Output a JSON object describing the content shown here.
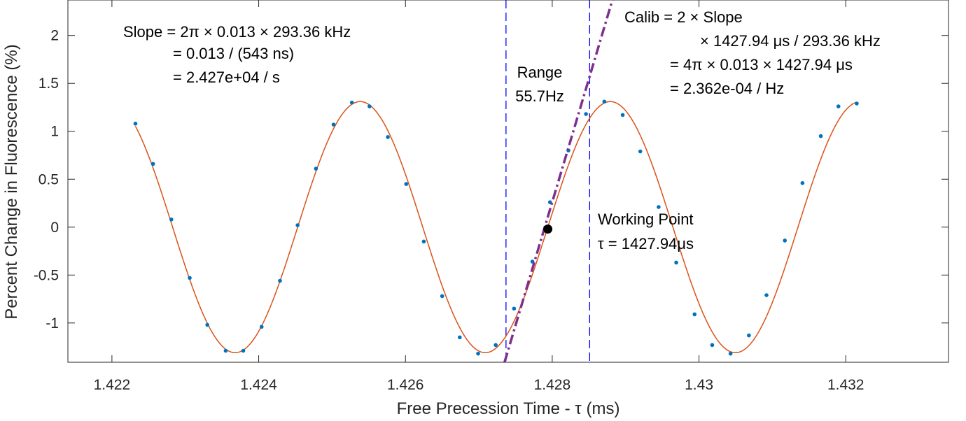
{
  "chart_data": {
    "type": "line",
    "xlabel": "Free Precession Time - τ (ms)",
    "ylabel": "Percent Change in Fluorescence (%)",
    "xlim": [
      1.4214,
      1.4334
    ],
    "ylim": [
      -1.41,
      2.37
    ],
    "xticks": [
      1.422,
      1.424,
      1.426,
      1.428,
      1.43,
      1.432
    ],
    "xtick_labels": [
      "1.422",
      "1.424",
      "1.426",
      "1.428",
      "1.43",
      "1.432"
    ],
    "yticks": [
      -1,
      -0.5,
      0,
      0.5,
      1,
      1.5,
      2
    ],
    "ytick_labels": [
      "-1",
      "-0.5",
      "0",
      "0.5",
      "1",
      "1.5",
      "2"
    ],
    "grid": false,
    "colors": {
      "fit": "#D95319",
      "points": "#0072BD",
      "slope_line": "#7E2F8E",
      "range_lines": "#0000FF",
      "working_point": "#000000"
    },
    "fit_model": {
      "amplitude": 1.31,
      "frequency_khz": 293.36,
      "center_ms": 1.42794,
      "phase": "zero-crossing rising at working point"
    },
    "series": [
      {
        "kind": "measured",
        "x": [
          1.42232,
          1.42256,
          1.42281,
          1.42306,
          1.4233,
          1.42355,
          1.42379,
          1.42404,
          1.42429,
          1.42453,
          1.42478,
          1.42502,
          1.42527,
          1.42551,
          1.42576,
          1.42601,
          1.42625,
          1.4265,
          1.42674,
          1.42699,
          1.42723,
          1.42748,
          1.42773,
          1.42797,
          1.42822,
          1.42846,
          1.42871,
          1.42896,
          1.4292,
          1.42945,
          1.42969,
          1.42994,
          1.43018,
          1.43043,
          1.43068,
          1.43092,
          1.43117,
          1.43141,
          1.43166,
          1.4319,
          1.43215
        ],
        "y": [
          1.08,
          0.66,
          0.08,
          -0.53,
          -1.02,
          -1.29,
          -1.29,
          -1.04,
          -0.56,
          0.02,
          0.61,
          1.07,
          1.3,
          1.26,
          0.94,
          0.45,
          -0.15,
          -0.72,
          -1.15,
          -1.32,
          -1.23,
          -0.85,
          -0.36,
          0.26,
          0.8,
          1.18,
          1.31,
          1.17,
          0.79,
          0.21,
          -0.37,
          -0.91,
          -1.23,
          -1.32,
          -1.13,
          -0.71,
          -0.14,
          0.46,
          0.95,
          1.26,
          1.29
        ]
      }
    ],
    "working_point": {
      "x": 1.42794,
      "y": -0.02
    },
    "slope_line": {
      "x": [
        1.42735,
        1.42882
      ],
      "y": [
        -1.41,
        2.37
      ]
    },
    "range_lines_x": [
      1.42737,
      1.42851
    ],
    "annotations": {
      "slope_lines": [
        "Slope = 2π × 0.013 × 293.36 kHz",
        "= 0.013 / (543 ns)",
        "= 2.427e+04 / s"
      ],
      "calib_lines": [
        "Calib = 2 × Slope",
        "× 1427.94 μs / 293.36 kHz",
        "= 4π × 0.013 × 1427.94 μs",
        "= 2.362e-04 / Hz"
      ],
      "range_lines": [
        "Range",
        "55.7Hz"
      ],
      "working_lines": [
        "Working Point",
        "τ = 1427.94μs"
      ]
    }
  }
}
